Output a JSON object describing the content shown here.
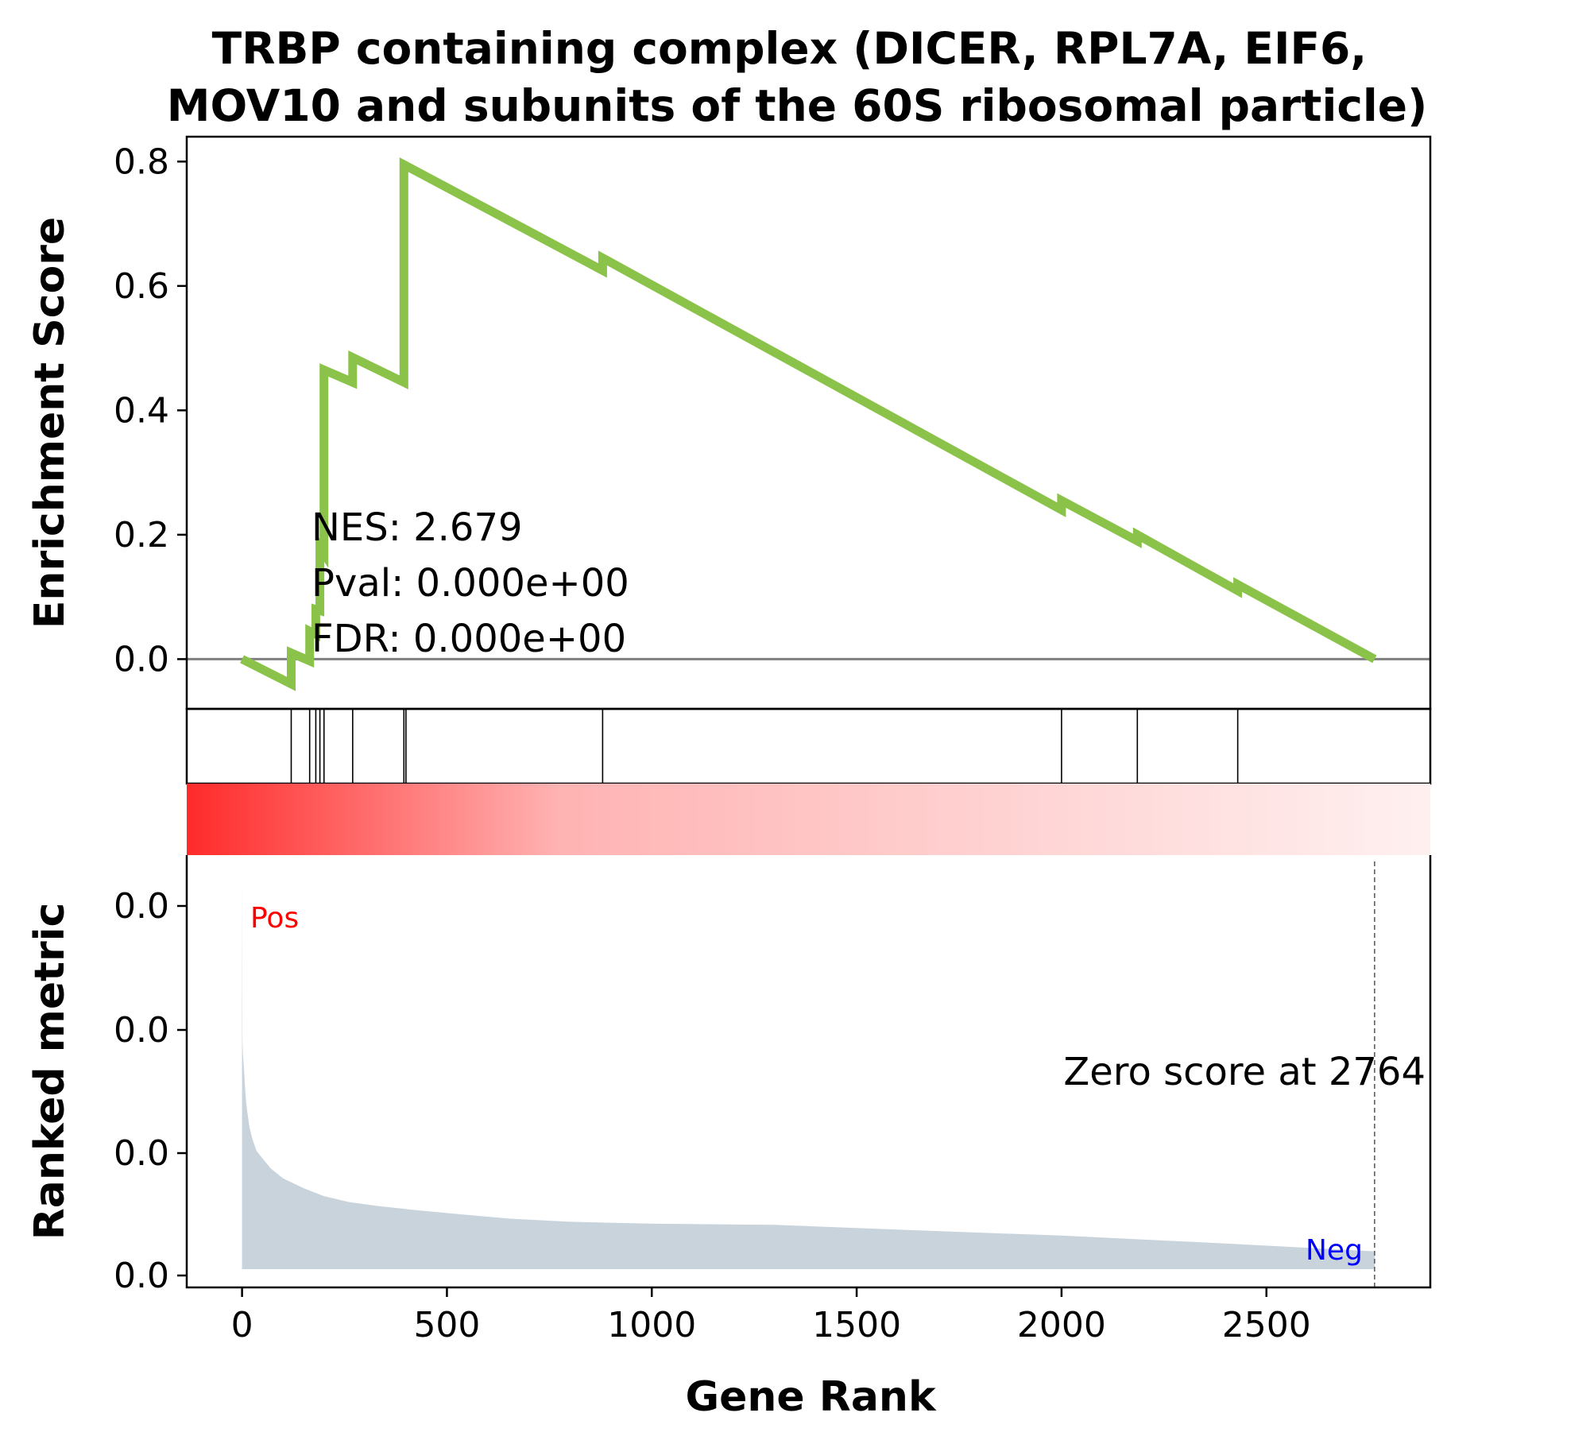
{
  "chart_data": {
    "type": "line",
    "title": "TRBP containing complex (DICER, RPL7A, EIF6,\nMOV10 and subunits of the 60S ribosomal particle)",
    "xlabel": "Gene Rank",
    "ylabel_top": "Enrichment Score",
    "ylabel_bottom": "Ranked metric",
    "xlim": [
      -135,
      2900
    ],
    "x_ticks": [
      0,
      500,
      1000,
      1500,
      2000,
      2500
    ],
    "es_ylim": [
      -0.08,
      0.84
    ],
    "es_y_ticks": [
      0.0,
      0.2,
      0.4,
      0.6,
      0.8
    ],
    "es_y_tick_labels": [
      "0.0",
      "0.2",
      "0.4",
      "0.6",
      "0.8"
    ],
    "series": [
      {
        "x": [
          0,
          120,
          120,
          165,
          165,
          180,
          180,
          190,
          190,
          200,
          200,
          270,
          270,
          395,
          395,
          880,
          880,
          2000,
          2000,
          2185,
          2185,
          2430,
          2430,
          2764
        ],
        "values": [
          0.0,
          -0.04,
          0.01,
          -0.003,
          0.045,
          0.04,
          0.08,
          0.078,
          0.18,
          0.17,
          0.465,
          0.445,
          0.485,
          0.445,
          0.795,
          0.625,
          0.645,
          0.24,
          0.255,
          0.19,
          0.2,
          0.11,
          0.12,
          0.0
        ],
        "color": "#8bc34a"
      }
    ],
    "hits": [
      120,
      165,
      180,
      190,
      200,
      270,
      395,
      400,
      880,
      2000,
      2185,
      2430
    ],
    "ranked_metric": {
      "y_tick_labels": [
        "0.0",
        "0.0",
        "0.0",
        "0.0"
      ],
      "x": [
        0,
        1,
        2,
        5,
        8,
        10,
        14,
        18,
        25,
        35,
        50,
        70,
        100,
        150,
        200,
        260,
        330,
        420,
        520,
        650,
        800,
        1000,
        1300,
        1600,
        2000,
        2400,
        2764
      ],
      "values": [
        1.0,
        0.58,
        0.55,
        0.5,
        0.45,
        0.42,
        0.39,
        0.36,
        0.33,
        0.3,
        0.28,
        0.255,
        0.23,
        0.205,
        0.185,
        0.17,
        0.16,
        0.15,
        0.14,
        0.128,
        0.12,
        0.115,
        0.112,
        0.1,
        0.085,
        0.065,
        0.045
      ],
      "fill_color": "#c8d3dc",
      "zero_score_x": 2764,
      "zero_score_text": "Zero score at 2764",
      "pos_label": "Pos",
      "neg_label": "Neg",
      "pos_color": "#ff0000",
      "neg_color": "#0000ff"
    },
    "gradient_colors": [
      "#ff2a2a",
      "#fff0f0"
    ],
    "annotations": {
      "nes": "NES: 2.679",
      "pval": "Pval: 0.000e+00",
      "fdr": "FDR: 0.000e+00"
    },
    "grid": false
  }
}
